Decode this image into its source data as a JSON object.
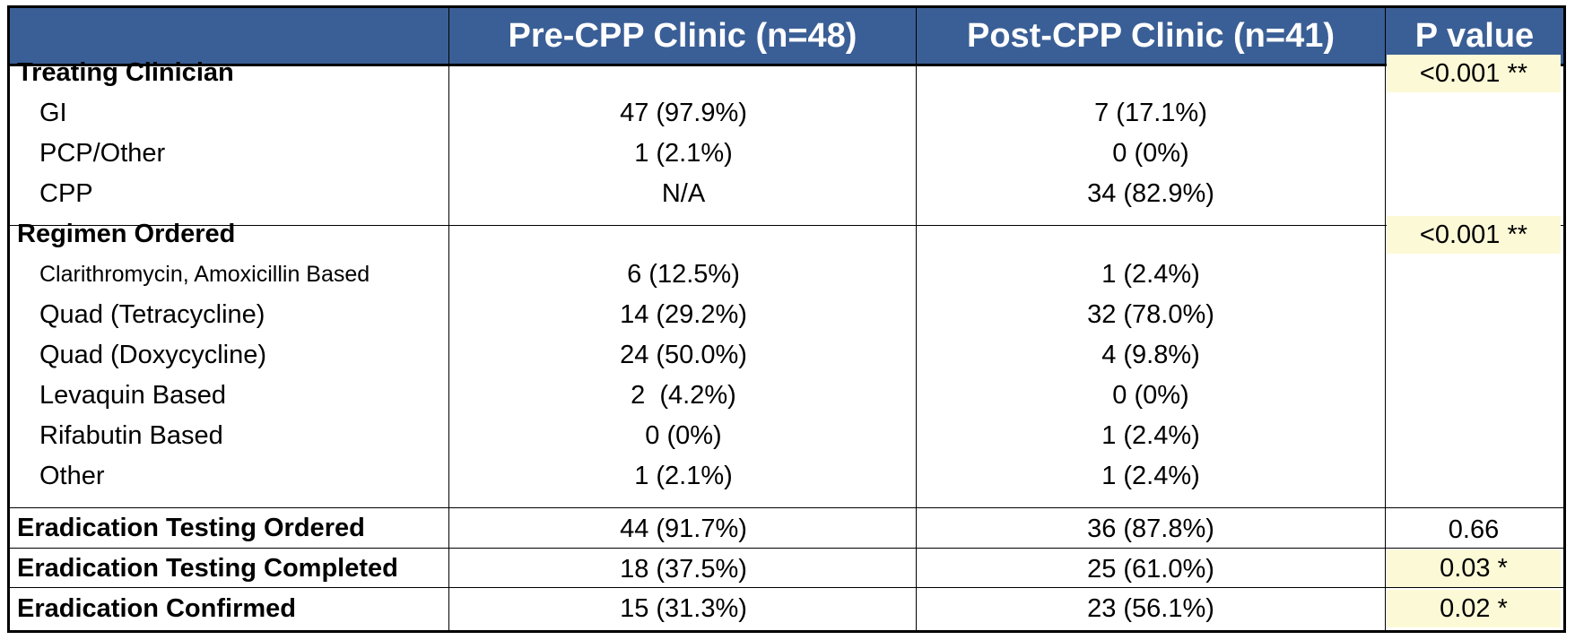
{
  "table": {
    "headers": {
      "col0": "",
      "col1": "Pre-CPP Clinic (n=48)",
      "col2": "Post-CPP Clinic (n=41)",
      "col3": "P value"
    },
    "highlight_color": "#fcf9d6",
    "header_color": "#3a5f96",
    "rows": [
      {
        "label": "Treating Clinician",
        "pre": "",
        "post": "",
        "p": "<0.001 **",
        "bold": true,
        "highlight": true
      },
      {
        "label": "GI",
        "pre": "47 (97.9%)",
        "post": "7 (17.1%)",
        "p": ""
      },
      {
        "label": "PCP/Other",
        "pre": "1 (2.1%)",
        "post": "0 (0%)",
        "p": ""
      },
      {
        "label": "CPP",
        "pre": "N/A",
        "post": "34 (82.9%)",
        "p": ""
      },
      {
        "label": "Regimen Ordered",
        "pre": "",
        "post": "",
        "p": "<0.001 **",
        "bold": true,
        "highlight": true
      },
      {
        "label": "Clarithromycin, Amoxicillin Based",
        "pre": "6 (12.5%)",
        "post": "1 (2.4%)",
        "p": ""
      },
      {
        "label": "Quad (Tetracycline)",
        "pre": "14 (29.2%)",
        "post": "32 (78.0%)",
        "p": ""
      },
      {
        "label": "Quad (Doxycycline)",
        "pre": "24 (50.0%)",
        "post": "4 (9.8%)",
        "p": ""
      },
      {
        "label": "Levaquin Based",
        "pre": "2  (4.2%)",
        "post": "0 (0%)",
        "p": ""
      },
      {
        "label": "Rifabutin Based",
        "pre": "0 (0%)",
        "post": "1 (2.4%)",
        "p": ""
      },
      {
        "label": "Other",
        "pre": "1 (2.1%)",
        "post": "1 (2.4%)",
        "p": ""
      },
      {
        "label": "Eradication Testing Ordered",
        "pre": "44 (91.7%)",
        "post": "36 (87.8%)",
        "p": "0.66",
        "bold": true
      },
      {
        "label": "Eradication Testing Completed",
        "pre": "18 (37.5%)",
        "post": "25 (61.0%)",
        "p": "0.03 *",
        "bold": true,
        "highlight": true
      },
      {
        "label": "Eradication Confirmed",
        "pre": "15 (31.3%)",
        "post": "23 (56.1%)",
        "p": "0.02 *",
        "bold": true,
        "highlight": true
      }
    ]
  }
}
